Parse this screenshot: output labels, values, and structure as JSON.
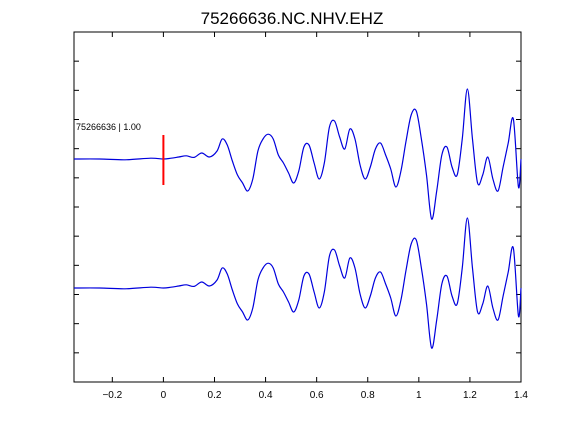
{
  "chart_data": {
    "type": "line",
    "title": "75266636.NC.NHV.EHZ",
    "xlabel": "",
    "ylabel": "",
    "xlim": [
      -0.35,
      1.4
    ],
    "x_ticks": [
      -0.2,
      0,
      0.2,
      0.4,
      0.6,
      0.8,
      1,
      1.2,
      1.4
    ],
    "x_tick_labels": [
      "−0.2",
      "0",
      "0.2",
      "0.4",
      "0.6",
      "0.8",
      "1",
      "1.2",
      "1.4"
    ],
    "y_tick_count": 12,
    "grid": false,
    "trace_color": "#0000dd",
    "pick_marker": {
      "x": 0,
      "color": "#ff0000"
    },
    "annotation": "75266636 | 1.00",
    "series": [
      {
        "x": [
          -0.35,
          -0.25,
          -0.15,
          -0.05,
          0,
          0.03,
          0.06,
          0.09,
          0.12,
          0.15,
          0.18,
          0.21,
          0.23,
          0.25,
          0.27,
          0.29,
          0.31,
          0.33,
          0.35,
          0.37,
          0.39,
          0.41,
          0.43,
          0.45,
          0.47,
          0.49,
          0.51,
          0.53,
          0.55,
          0.57,
          0.59,
          0.61,
          0.63,
          0.65,
          0.67,
          0.69,
          0.71,
          0.73,
          0.75,
          0.77,
          0.79,
          0.81,
          0.83,
          0.85,
          0.87,
          0.89,
          0.91,
          0.93,
          0.95,
          0.97,
          0.99,
          1.01,
          1.03,
          1.05,
          1.07,
          1.09,
          1.11,
          1.13,
          1.15,
          1.17,
          1.19,
          1.21,
          1.23,
          1.25,
          1.27,
          1.29,
          1.31,
          1.33,
          1.35,
          1.37,
          1.39,
          1.4
        ],
        "y": [
          0,
          0,
          -0.02,
          0.02,
          0,
          0.02,
          0.05,
          0.08,
          0.04,
          0.15,
          0.05,
          0.2,
          0.5,
          0.35,
          -0.05,
          -0.4,
          -0.6,
          -0.8,
          -0.5,
          0.2,
          0.5,
          0.62,
          0.5,
          0.1,
          -0.1,
          -0.35,
          -0.6,
          -0.3,
          0.3,
          0.35,
          -0.1,
          -0.5,
          -0.1,
          0.8,
          0.95,
          0.55,
          0.25,
          0.75,
          0.5,
          -0.15,
          -0.5,
          -0.2,
          0.25,
          0.4,
          0.1,
          -0.25,
          -0.7,
          -0.3,
          0.45,
          1.1,
          1.2,
          0.5,
          -0.4,
          -1.5,
          -0.8,
          0.1,
          0.3,
          -0.2,
          -0.4,
          0.5,
          1.75,
          0.5,
          -0.6,
          -0.4,
          0.05,
          -0.5,
          -0.8,
          -0.2,
          0.4,
          1.0,
          -0.7,
          0.0
        ]
      }
    ]
  }
}
